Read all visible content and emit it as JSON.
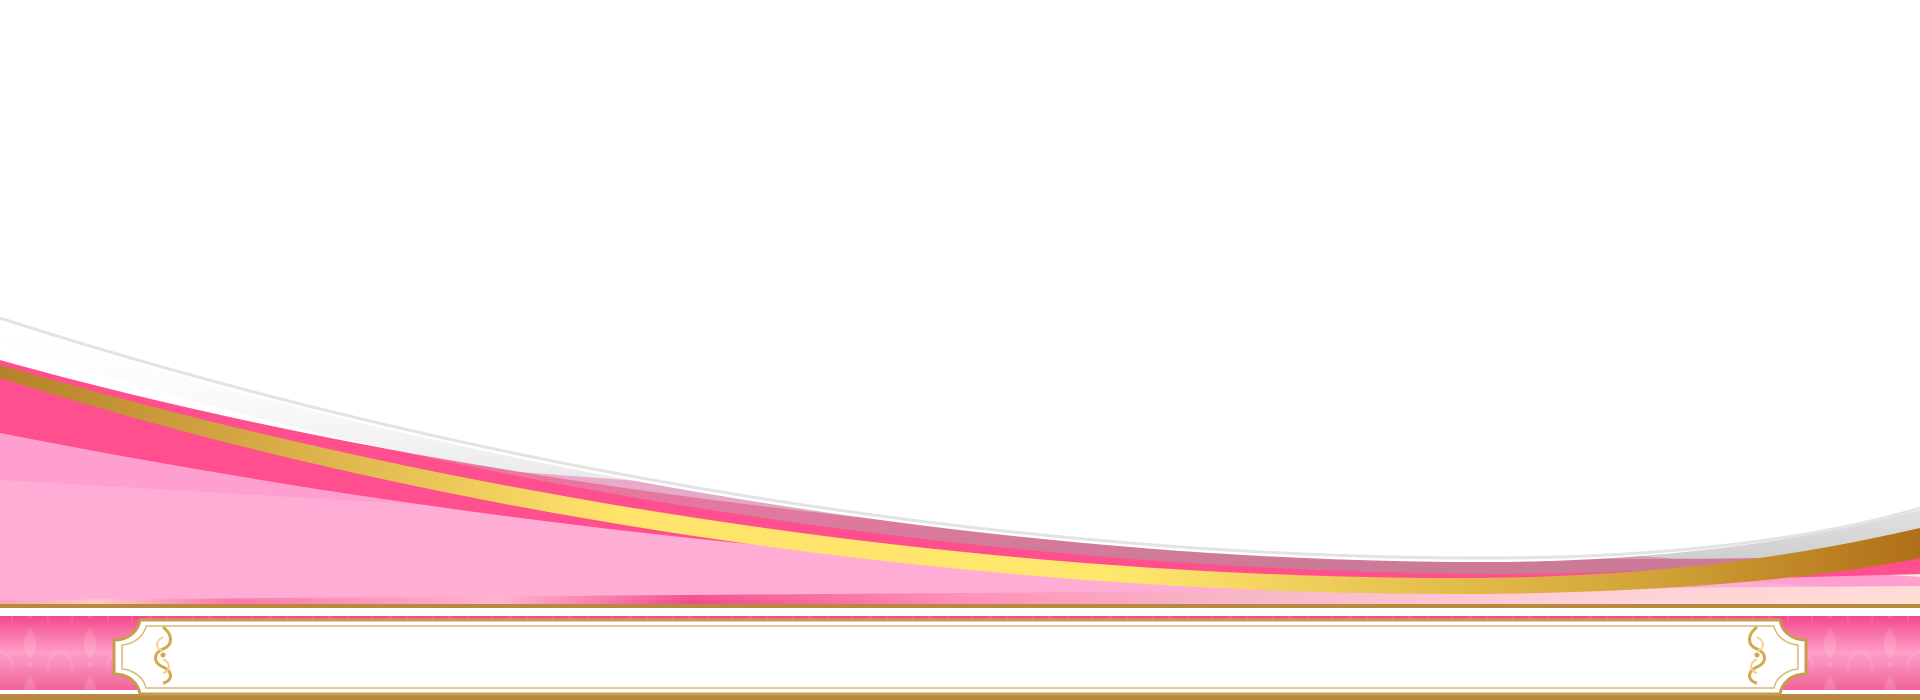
{
  "banner": {
    "title_text": ""
  },
  "ornaments": {
    "left_icon": "filigree-scroll-icon",
    "right_icon": "filigree-scroll-icon"
  },
  "palette": {
    "background": "#ffffff",
    "hot_pink": "#ff4f8e",
    "light_pink": "#ff9fce",
    "pale_pink": "#ffc6de",
    "blush": "#f7c4b0",
    "gold_light": "#ffe36b",
    "gold_dark": "#b7802a",
    "frame_gold": "#c99c4b",
    "shadow_gray": "#d9d9d9"
  }
}
